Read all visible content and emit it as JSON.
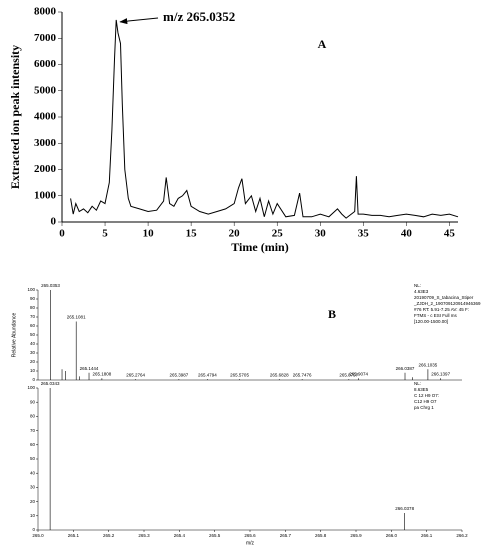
{
  "chart_data": [
    {
      "type": "line",
      "panel_label": "A",
      "annotation": "m/z 265.0352",
      "x_label": "Time (min)",
      "y_label": "Extracted ion peak intensity",
      "color": "#000000",
      "x": [
        1,
        1.3,
        1.6,
        2,
        2.5,
        3,
        3.5,
        4,
        4.5,
        5,
        5.5,
        5.8,
        6.1,
        6.3,
        6.5,
        6.8,
        7,
        7.3,
        7.7,
        8,
        9,
        10,
        11,
        11.8,
        12.1,
        12.5,
        13,
        13.5,
        14,
        14.5,
        15,
        16,
        17,
        18,
        19,
        20,
        20.5,
        20.9,
        21.3,
        22,
        22.5,
        23,
        23.5,
        24,
        24.5,
        25,
        26,
        27,
        27.6,
        28,
        29,
        30,
        31,
        32,
        32.5,
        33,
        34,
        34.2,
        34.4,
        35,
        36,
        37,
        38,
        39,
        40,
        41,
        42,
        43,
        44,
        45,
        46
      ],
      "values": [
        900,
        300,
        700,
        400,
        500,
        350,
        600,
        450,
        800,
        700,
        1500,
        3500,
        6200,
        7700,
        7200,
        6800,
        4500,
        2000,
        900,
        600,
        500,
        400,
        450,
        800,
        1700,
        700,
        600,
        900,
        1000,
        1200,
        600,
        400,
        300,
        400,
        500,
        700,
        1300,
        1650,
        700,
        1000,
        400,
        900,
        200,
        800,
        300,
        700,
        200,
        250,
        1100,
        200,
        200,
        300,
        200,
        500,
        300,
        150,
        400,
        1750,
        300,
        300,
        250,
        250,
        200,
        250,
        300,
        250,
        200,
        300,
        250,
        300,
        200
      ],
      "xlim": [
        0,
        46
      ],
      "xticks": [
        0,
        5,
        10,
        15,
        20,
        25,
        30,
        35,
        40,
        45
      ],
      "ylim": [
        0,
        8000
      ],
      "yticks": [
        0,
        1000,
        2000,
        3000,
        4000,
        5000,
        6000,
        7000,
        8000
      ]
    },
    {
      "type": "stem",
      "panel_label": "B",
      "y_label": "Relative Abundance",
      "color": "#000000",
      "info": [
        "NL:",
        "4.63E3",
        "20190709_S_tabacina_Stiper",
        "_ZJDH_2_190709120914946369",
        "#76 RT: 5.91-7.25 AV: 45 F:",
        "FTMS - c ESI Full ms",
        "[120.00-1500.00]"
      ],
      "x": [
        265.0353,
        265.068,
        265.078,
        265.1081,
        265.118,
        265.1444,
        265.1808,
        265.2764,
        265.3987,
        265.4794,
        265.5705,
        265.6828,
        265.7476,
        265.8797,
        265.9074,
        266.0387,
        266.06,
        266.1035,
        266.1397
      ],
      "values": [
        100,
        12,
        10,
        65,
        4,
        8,
        2,
        1,
        1,
        1,
        1,
        1,
        1,
        1,
        2,
        8,
        3,
        12,
        2
      ],
      "peak_labels": [
        "265.0353",
        null,
        null,
        "265.1081",
        null,
        "265.1444",
        "265.1808",
        "265.2764",
        "265.3987",
        "265.4794",
        "265.5705",
        "265.6828",
        "265.7476",
        "265.8797",
        "265.9074",
        "266.0387",
        null,
        "266.1035",
        "266.1397"
      ],
      "xlim": [
        265.0,
        266.2
      ],
      "ylim": [
        0,
        100
      ],
      "yticks": [
        0,
        10,
        20,
        30,
        40,
        50,
        60,
        70,
        80,
        90,
        100
      ]
    },
    {
      "type": "stem",
      "x_label": "m/z",
      "color": "#000000",
      "info": [
        "NL:",
        "8.63E5",
        "C 12 H9 O7:",
        "C12 H9 O7",
        "pa Chrg 1"
      ],
      "x": [
        265.0343,
        266.0378
      ],
      "values": [
        100,
        12
      ],
      "peak_labels": [
        "265.0343",
        "266.0378"
      ],
      "xlim": [
        265.0,
        266.2
      ],
      "xticks": [
        {
          "value": 265.0,
          "label": "265.0"
        },
        265.1,
        265.2,
        265.3,
        265.4,
        265.5,
        265.6,
        265.7,
        265.8,
        265.9,
        {
          "value": 266.0,
          "label": "266.0"
        },
        266.1,
        266.2
      ],
      "ylim": [
        0,
        100
      ],
      "yticks": [
        0,
        10,
        20,
        30,
        40,
        50,
        60,
        70,
        80,
        90,
        100
      ]
    }
  ]
}
